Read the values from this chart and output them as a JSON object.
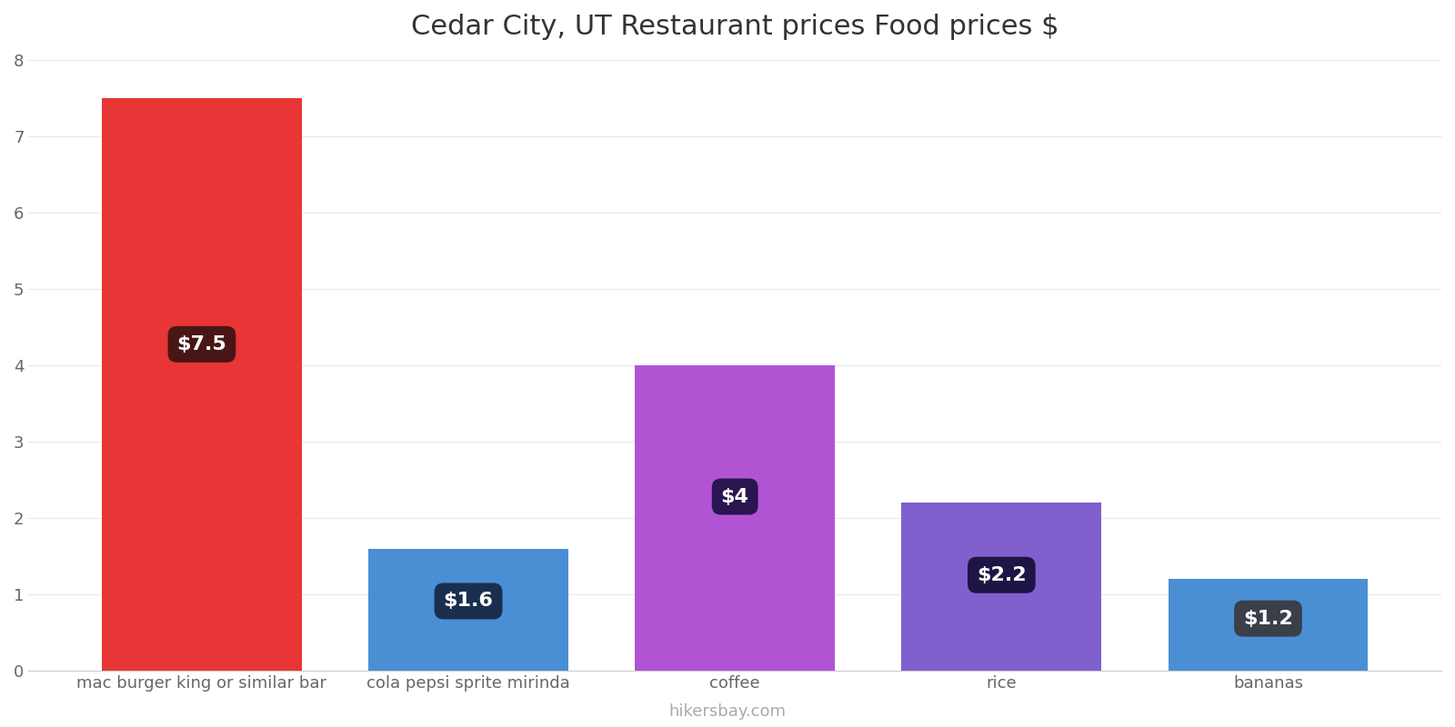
{
  "title": "Cedar City, UT Restaurant prices Food prices $",
  "categories": [
    "mac burger king or similar bar",
    "cola pepsi sprite mirinda",
    "coffee",
    "rice",
    "bananas"
  ],
  "values": [
    7.5,
    1.6,
    4.0,
    2.2,
    1.2
  ],
  "bar_colors": [
    "#e83535",
    "#4a8fd4",
    "#b054d4",
    "#8060cc",
    "#4a8fd4"
  ],
  "label_texts": [
    "$7.5",
    "$1.6",
    "$4",
    "$2.2",
    "$1.2"
  ],
  "label_bg_colors": [
    "#4a1515",
    "#1a2f50",
    "#2a1550",
    "#1e1545",
    "#3a3f4a"
  ],
  "ylim": [
    0,
    8
  ],
  "yticks": [
    0,
    1,
    2,
    3,
    4,
    5,
    6,
    7,
    8
  ],
  "title_fontsize": 22,
  "tick_fontsize": 13,
  "label_fontsize": 16,
  "watermark": "hikersbay.com",
  "background_color": "#ffffff",
  "grid_color": "#e8e8e8",
  "bar_width": 0.75
}
